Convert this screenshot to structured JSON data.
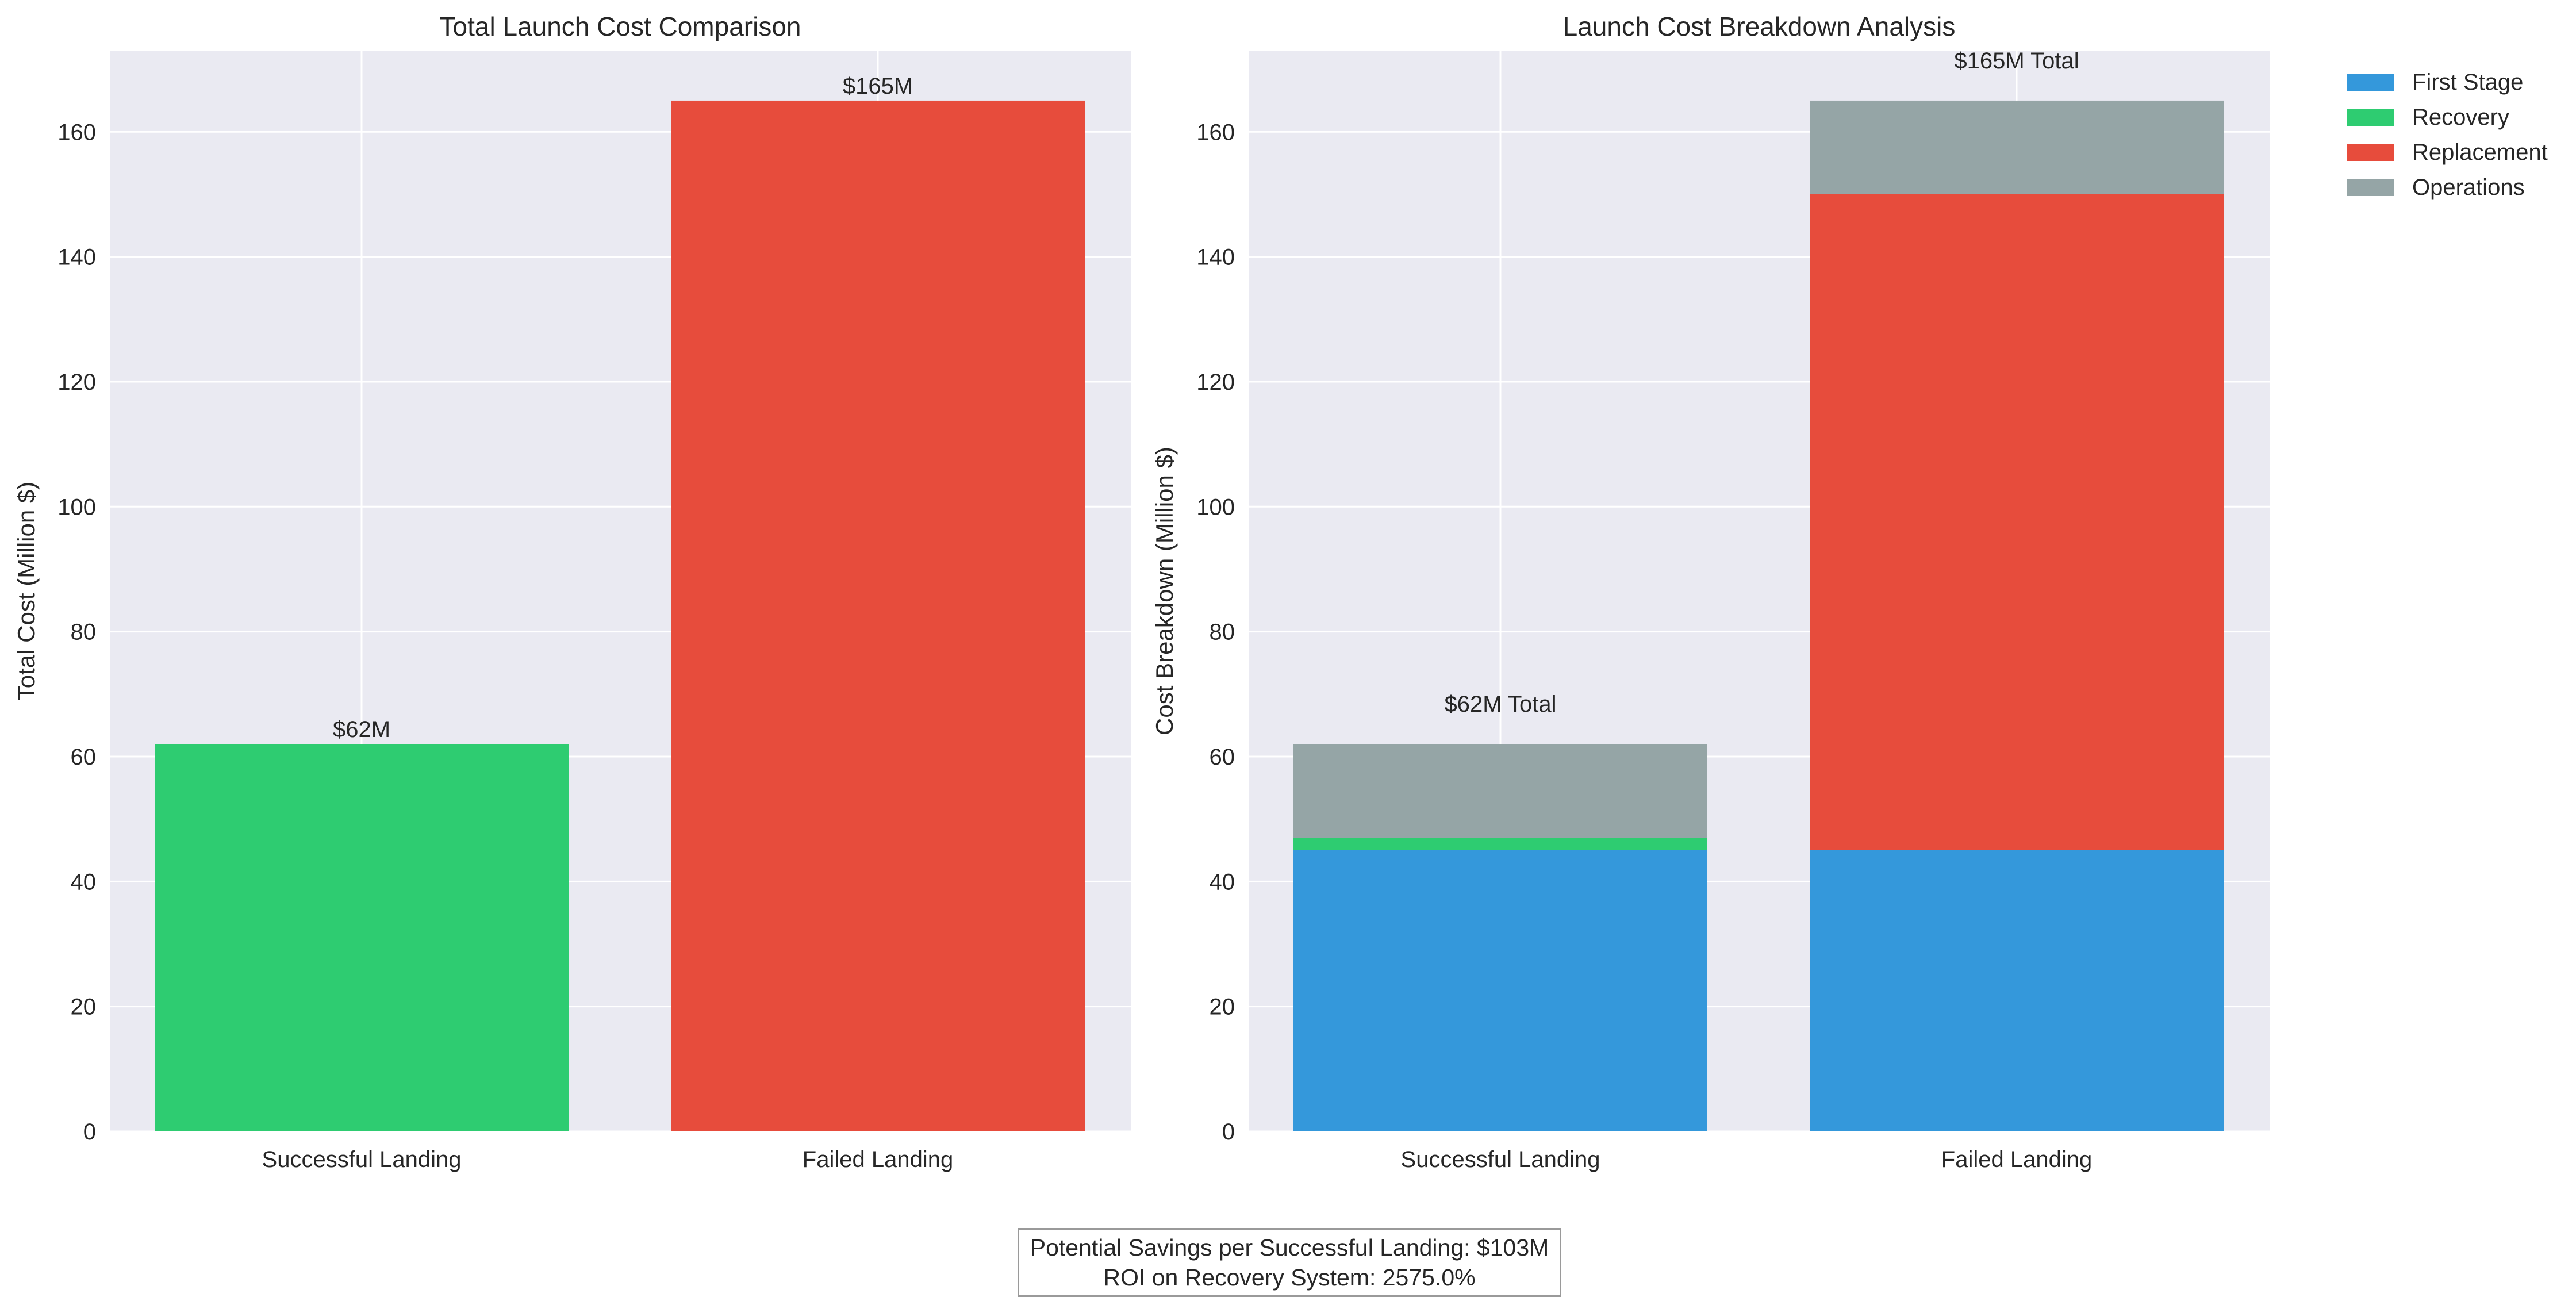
{
  "chart_data": [
    {
      "type": "bar",
      "title": "Total Launch Cost Comparison",
      "xlabel": "",
      "ylabel": "Total Cost (Million $)",
      "categories": [
        "Successful Landing",
        "Failed Landing"
      ],
      "values": [
        62,
        165
      ],
      "bar_colors": [
        "#2ecc71",
        "#e74c3c"
      ],
      "data_labels": [
        "$62M",
        "$165M"
      ],
      "ylim": [
        0,
        173
      ],
      "yticks": [
        0,
        20,
        40,
        60,
        80,
        100,
        120,
        140,
        160
      ],
      "grid": true
    },
    {
      "type": "bar",
      "stacked": true,
      "title": "Launch Cost Breakdown Analysis",
      "xlabel": "",
      "ylabel": "Cost Breakdown (Million $)",
      "categories": [
        "Successful Landing",
        "Failed Landing"
      ],
      "series": [
        {
          "name": "First Stage",
          "values": [
            45,
            45
          ],
          "color": "#3498db"
        },
        {
          "name": "Recovery",
          "values": [
            2,
            0
          ],
          "color": "#2ecc71"
        },
        {
          "name": "Replacement",
          "values": [
            0,
            105
          ],
          "color": "#e74c3c"
        },
        {
          "name": "Operations",
          "values": [
            15,
            15
          ],
          "color": "#95a5a6"
        }
      ],
      "totals": [
        62,
        165
      ],
      "total_labels": [
        "$62M Total",
        "$165M Total"
      ],
      "ylim": [
        0,
        173
      ],
      "yticks": [
        0,
        20,
        40,
        60,
        80,
        100,
        120,
        140,
        160
      ],
      "grid": true,
      "legend": "outside-top-right"
    }
  ],
  "footnote": {
    "line1": "Potential Savings per Successful Landing: $103M",
    "line2": "ROI on Recovery System: 2575.0%"
  },
  "style": {
    "axes_background": "#eaeaf2",
    "grid_color": "#ffffff"
  }
}
